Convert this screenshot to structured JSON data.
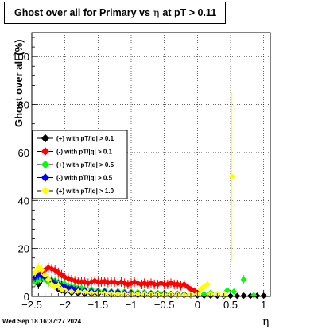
{
  "title": {
    "prefix": "Ghost over all for Primary vs",
    "symbol": "η",
    "suffix": "at pT > 0.11"
  },
  "timestamp": "Wed Sep 18 16:37:27 2024",
  "colors": {
    "black": "#000000",
    "red": "#ff0000",
    "green": "#00ff00",
    "blue": "#0000ff",
    "yellow": "#ffff00"
  },
  "chart_data": {
    "type": "scatter",
    "title": "Ghost over all for Primary vs η at pT > 0.11",
    "xlabel": "η",
    "ylabel": "Ghost over all (%)",
    "xlim": [
      -2.5,
      1.1
    ],
    "ylim": [
      0,
      110
    ],
    "x_ticks": [
      "−2.5",
      "−2",
      "−1.5",
      "−1",
      "−0.5",
      "0",
      "0.5",
      "1"
    ],
    "y_ticks": [
      "0",
      "20",
      "40",
      "60",
      "80",
      "100"
    ],
    "grid": true,
    "legend_position": "left-middle",
    "series": [
      {
        "name": "(+) with pT/|q| > 0.1",
        "color": "#000000",
        "marker": "diamond",
        "points": [
          [
            -2.4,
            5
          ],
          [
            -2.35,
            7
          ],
          [
            -2.3,
            8
          ],
          [
            -2.25,
            6
          ],
          [
            -2.2,
            5
          ],
          [
            -2.15,
            4
          ],
          [
            -2.1,
            3
          ],
          [
            -2.05,
            2.5
          ],
          [
            -2.0,
            2
          ],
          [
            -1.9,
            1.5
          ],
          [
            -1.8,
            1.2
          ],
          [
            -1.7,
            1
          ],
          [
            -1.6,
            1
          ],
          [
            -1.5,
            1
          ],
          [
            -1.4,
            1
          ],
          [
            -1.3,
            0.8
          ],
          [
            -1.2,
            0.8
          ],
          [
            -1.1,
            0.8
          ],
          [
            -1.0,
            0.8
          ],
          [
            -0.9,
            0.6
          ],
          [
            -0.8,
            0.6
          ],
          [
            -0.7,
            0.6
          ],
          [
            -0.6,
            0.5
          ],
          [
            -0.5,
            0.5
          ],
          [
            -0.4,
            0.5
          ],
          [
            -0.3,
            0.5
          ],
          [
            -0.2,
            0.4
          ],
          [
            -0.1,
            0.4
          ],
          [
            0.0,
            0.4
          ],
          [
            0.1,
            0.3
          ],
          [
            0.2,
            0.3
          ],
          [
            0.3,
            0.3
          ],
          [
            0.4,
            0.2
          ],
          [
            0.5,
            0.2
          ],
          [
            0.6,
            0.2
          ],
          [
            0.7,
            0.3
          ],
          [
            0.8,
            0.2
          ],
          [
            0.9,
            0.3
          ],
          [
            1.0,
            0.3
          ]
        ]
      },
      {
        "name": "(-) with pT/|q| > 0.1",
        "color": "#ff0000",
        "marker": "diamond",
        "points": [
          [
            -2.45,
            7
          ],
          [
            -2.4,
            9
          ],
          [
            -2.35,
            10
          ],
          [
            -2.3,
            11
          ],
          [
            -2.25,
            12
          ],
          [
            -2.2,
            11.5
          ],
          [
            -2.15,
            11
          ],
          [
            -2.1,
            10
          ],
          [
            -2.05,
            9
          ],
          [
            -2.0,
            8
          ],
          [
            -1.95,
            7.5
          ],
          [
            -1.9,
            7
          ],
          [
            -1.85,
            6.5
          ],
          [
            -1.8,
            6.2
          ],
          [
            -1.75,
            6
          ],
          [
            -1.7,
            6
          ],
          [
            -1.65,
            5.5
          ],
          [
            -1.6,
            6
          ],
          [
            -1.55,
            6.5
          ],
          [
            -1.5,
            6
          ],
          [
            -1.45,
            6
          ],
          [
            -1.4,
            6.2
          ],
          [
            -1.35,
            5.8
          ],
          [
            -1.3,
            6
          ],
          [
            -1.25,
            6
          ],
          [
            -1.2,
            5.5
          ],
          [
            -1.15,
            6
          ],
          [
            -1.1,
            5.5
          ],
          [
            -1.05,
            5
          ],
          [
            -1.0,
            5.5
          ],
          [
            -0.95,
            6
          ],
          [
            -0.9,
            5.5
          ],
          [
            -0.85,
            5
          ],
          [
            -0.8,
            5.5
          ],
          [
            -0.75,
            5
          ],
          [
            -0.7,
            5.5
          ],
          [
            -0.65,
            5
          ],
          [
            -0.6,
            5
          ],
          [
            -0.55,
            5.5
          ],
          [
            -0.5,
            5
          ],
          [
            -0.45,
            5
          ],
          [
            -0.4,
            5.5
          ],
          [
            -0.35,
            5
          ],
          [
            -0.3,
            5
          ],
          [
            -0.25,
            4.5
          ],
          [
            -0.2,
            5
          ],
          [
            -0.15,
            4
          ],
          [
            -0.1,
            3
          ],
          [
            -0.05,
            2.5
          ],
          [
            0.0,
            1.5
          ]
        ]
      },
      {
        "name": "(+) with pT/|q| > 0.5",
        "color": "#00ff00",
        "marker": "diamond",
        "points": [
          [
            -2.45,
            6
          ],
          [
            -2.4,
            7
          ],
          [
            -2.35,
            8
          ],
          [
            -2.3,
            7
          ],
          [
            -2.25,
            6
          ],
          [
            -2.2,
            7
          ],
          [
            -2.15,
            6.5
          ],
          [
            -2.1,
            6
          ],
          [
            -2.05,
            5.5
          ],
          [
            -2.0,
            5
          ],
          [
            -1.95,
            4.5
          ],
          [
            -1.9,
            4
          ],
          [
            -1.85,
            4
          ],
          [
            -1.8,
            3.5
          ],
          [
            -1.75,
            3.5
          ],
          [
            -1.7,
            3
          ],
          [
            -1.6,
            3
          ],
          [
            -1.5,
            2.5
          ],
          [
            -1.4,
            2.5
          ],
          [
            -1.3,
            2.2
          ],
          [
            -1.2,
            2.2
          ],
          [
            -1.1,
            2
          ],
          [
            -1.0,
            2
          ],
          [
            -0.9,
            1.8
          ],
          [
            -0.8,
            1.8
          ],
          [
            -0.7,
            1.5
          ],
          [
            -0.6,
            1.5
          ],
          [
            -0.5,
            1.5
          ],
          [
            -0.4,
            1.2
          ],
          [
            -0.3,
            1.2
          ],
          [
            -0.2,
            1
          ],
          [
            0.0,
            1
          ],
          [
            0.1,
            1
          ],
          [
            0.2,
            1.5
          ],
          [
            0.3,
            1
          ],
          [
            0.45,
            2.5
          ],
          [
            0.55,
            2
          ],
          [
            0.7,
            7
          ],
          [
            0.85,
            0.5
          ]
        ]
      },
      {
        "name": "(-) with pT/|q| > 0.5",
        "color": "#0000ff",
        "marker": "diamond",
        "points": [
          [
            -2.45,
            8
          ],
          [
            -2.4,
            9
          ],
          [
            -2.35,
            8.5
          ],
          [
            -2.3,
            8
          ],
          [
            -2.25,
            7
          ],
          [
            -2.2,
            6.5
          ],
          [
            -2.15,
            5.5
          ],
          [
            -2.1,
            5
          ],
          [
            -2.05,
            4.5
          ],
          [
            -2.0,
            4
          ],
          [
            -1.95,
            3.5
          ],
          [
            -1.9,
            3.5
          ],
          [
            -1.85,
            3
          ],
          [
            -1.8,
            3
          ],
          [
            -1.7,
            2.5
          ],
          [
            -1.6,
            2.2
          ],
          [
            -1.5,
            2
          ],
          [
            -1.4,
            2
          ],
          [
            -1.3,
            1.8
          ],
          [
            -1.2,
            1.8
          ],
          [
            -1.1,
            1.5
          ],
          [
            -1.0,
            1.5
          ],
          [
            -0.9,
            1.3
          ],
          [
            -0.8,
            1.2
          ],
          [
            -0.7,
            1.2
          ],
          [
            -0.6,
            1
          ],
          [
            -0.5,
            1
          ],
          [
            -0.4,
            1
          ],
          [
            -0.3,
            0.8
          ],
          [
            -0.2,
            0.8
          ],
          [
            -0.1,
            0.6
          ]
        ]
      },
      {
        "name": "(+) with pT/|q| > 1.0",
        "color": "#ffff00",
        "marker": "diamond",
        "points": [
          [
            -2.45,
            10
          ],
          [
            -2.4,
            12
          ],
          [
            -2.35,
            11
          ],
          [
            -2.3,
            9
          ],
          [
            -2.25,
            7
          ],
          [
            -2.2,
            5
          ],
          [
            -2.15,
            4
          ],
          [
            -2.1,
            4.5
          ],
          [
            -2.05,
            3
          ],
          [
            -2.0,
            2.5
          ],
          [
            -1.9,
            2
          ],
          [
            -1.8,
            2
          ],
          [
            -1.7,
            1.8
          ],
          [
            -1.6,
            1.5
          ],
          [
            -1.5,
            1.5
          ],
          [
            -1.4,
            1.2
          ],
          [
            -1.3,
            1.2
          ],
          [
            -1.2,
            1
          ],
          [
            -1.1,
            1
          ],
          [
            -1.0,
            1
          ],
          [
            -0.9,
            1
          ],
          [
            -0.8,
            1
          ],
          [
            -0.7,
            0.8
          ],
          [
            -0.6,
            0.8
          ],
          [
            -0.5,
            0.8
          ],
          [
            -0.4,
            0.8
          ],
          [
            -0.3,
            0.6
          ],
          [
            -0.2,
            0.6
          ],
          [
            -0.1,
            0.6
          ],
          [
            0.0,
            1
          ],
          [
            0.05,
            3
          ],
          [
            0.1,
            4
          ],
          [
            0.15,
            5
          ],
          [
            0.2,
            1
          ],
          [
            0.3,
            1
          ],
          [
            0.4,
            0.5
          ],
          [
            0.52,
            50
          ]
        ]
      }
    ]
  }
}
